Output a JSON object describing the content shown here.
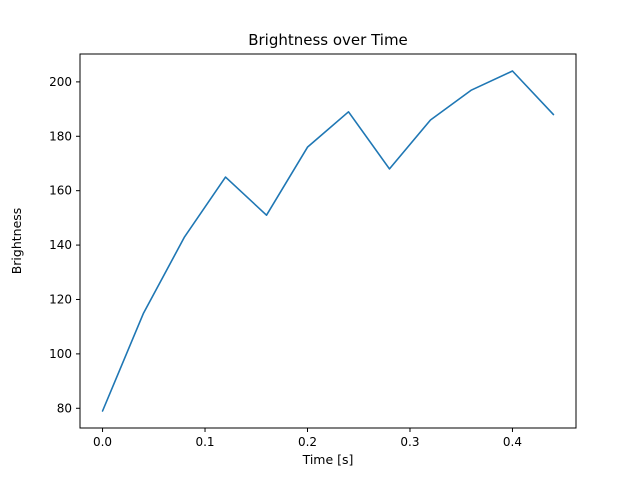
{
  "chart_data": {
    "type": "line",
    "title": "Brightness over Time",
    "xlabel": "Time [s]",
    "ylabel": "Brightness",
    "x": [
      0.0,
      0.04,
      0.08,
      0.12,
      0.16,
      0.2,
      0.24,
      0.28,
      0.32,
      0.36,
      0.4,
      0.44
    ],
    "y": [
      79,
      115,
      143,
      165,
      151,
      176,
      189,
      168,
      186,
      197,
      204,
      188
    ],
    "xticks": [
      0.0,
      0.1,
      0.2,
      0.3,
      0.4
    ],
    "yticks": [
      80,
      100,
      120,
      140,
      160,
      180,
      200
    ],
    "xlim": [
      -0.022,
      0.462
    ],
    "ylim": [
      72.75,
      210.25
    ],
    "line_color": "#1f77b4",
    "axes_color": "#000000",
    "background_color": "#ffffff",
    "grid": false,
    "legend": "none"
  }
}
